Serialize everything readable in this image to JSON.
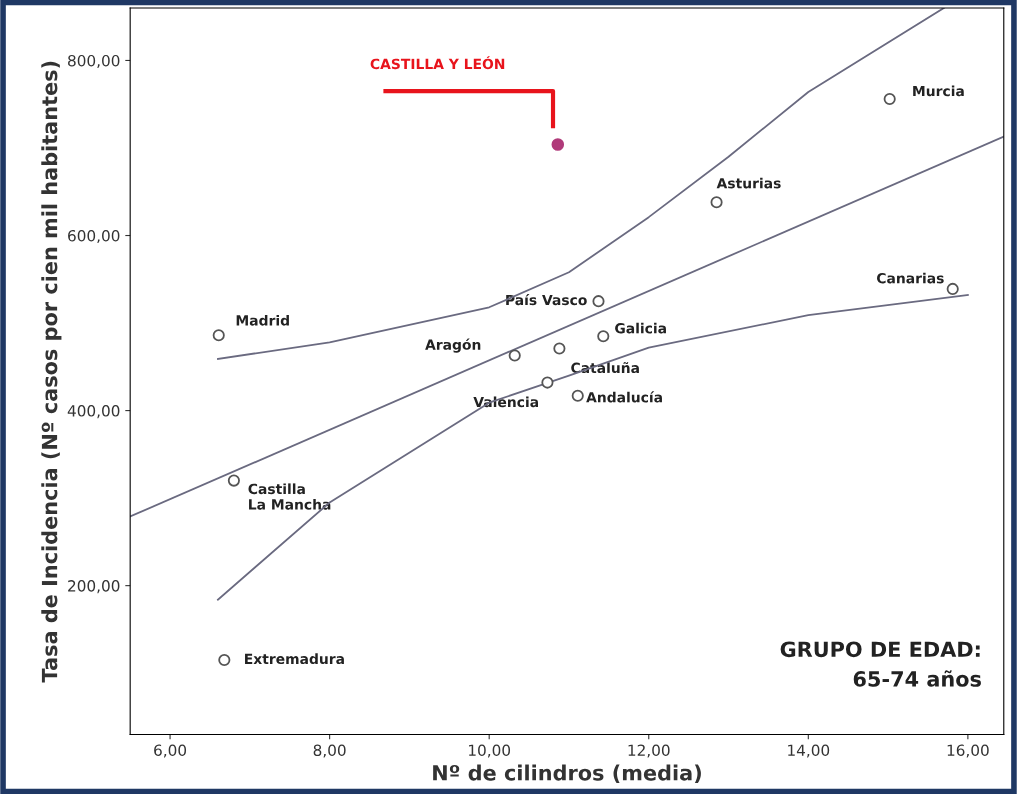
{
  "chart_data": {
    "type": "scatter",
    "xlabel": "Nº de cilindros (media)",
    "ylabel": "Tasa de Incidencia (Nº casos por cien mil habitantes)",
    "xlim": [
      5.5,
      16.45
    ],
    "ylim": [
      30,
      860
    ],
    "xticks": [
      {
        "value": 6,
        "label": "6,00"
      },
      {
        "value": 8,
        "label": "8,00"
      },
      {
        "value": 10,
        "label": "10,00"
      },
      {
        "value": 12,
        "label": "12,00"
      },
      {
        "value": 14,
        "label": "14,00"
      },
      {
        "value": 16,
        "label": "16,00"
      }
    ],
    "yticks": [
      {
        "value": 200,
        "label": "200,00"
      },
      {
        "value": 400,
        "label": "400,00"
      },
      {
        "value": 600,
        "label": "600,00"
      },
      {
        "value": 800,
        "label": "800,00"
      }
    ],
    "grid": false,
    "marker": "circle",
    "series": [
      {
        "color": "#555555",
        "x": [
          6.61,
          6.8,
          6.68,
          10.32,
          10.88,
          10.73,
          11.11,
          11.37,
          11.43,
          12.85,
          15.02,
          15.81
        ],
        "values": [
          486,
          320,
          115,
          463,
          471,
          432,
          417,
          525,
          485,
          638,
          756,
          539
        ]
      },
      {
        "color": "#b03a7a",
        "x": [
          10.86
        ],
        "values": [
          704
        ]
      },
      {
        "type": "line",
        "marker": "none",
        "color": "#6a6a80",
        "x": [
          5.5,
          16.45
        ],
        "values": [
          279,
          713
        ]
      },
      {
        "type": "line",
        "marker": "none",
        "color": "#6a6a80",
        "x": [
          6.6,
          8,
          10,
          11,
          12,
          13,
          14,
          15.7
        ],
        "values": [
          459,
          478,
          518,
          558,
          621,
          690,
          764,
          860
        ]
      },
      {
        "type": "line",
        "marker": "none",
        "color": "#6a6a80",
        "x": [
          6.6,
          8,
          10,
          11,
          12,
          14,
          16
        ],
        "values": [
          184,
          295,
          409,
          440,
          472,
          509,
          532
        ]
      }
    ],
    "annotations": [
      {
        "text": "Madrid",
        "x": 6.61,
        "y": 486
      },
      {
        "text": "Castilla\nLa Mancha",
        "x": 6.8,
        "y": 320
      },
      {
        "text": "Extremadura",
        "x": 6.68,
        "y": 115
      },
      {
        "text": "Aragón",
        "x": 10.32,
        "y": 463
      },
      {
        "text": "Cataluña",
        "x": 10.88,
        "y": 471
      },
      {
        "text": "Valencia",
        "x": 10.73,
        "y": 432
      },
      {
        "text": "Andalucía",
        "x": 11.11,
        "y": 417
      },
      {
        "text": "País Vasco",
        "x": 11.37,
        "y": 525
      },
      {
        "text": "Galicia",
        "x": 11.43,
        "y": 485
      },
      {
        "text": "Asturias",
        "x": 12.85,
        "y": 638
      },
      {
        "text": "Murcia",
        "x": 15.02,
        "y": 756
      },
      {
        "text": "Canarias",
        "x": 15.81,
        "y": 539
      },
      "CASTILLA Y LEÓN",
      "GRUPO DE EDAD:\n65-74 años"
    ]
  }
}
